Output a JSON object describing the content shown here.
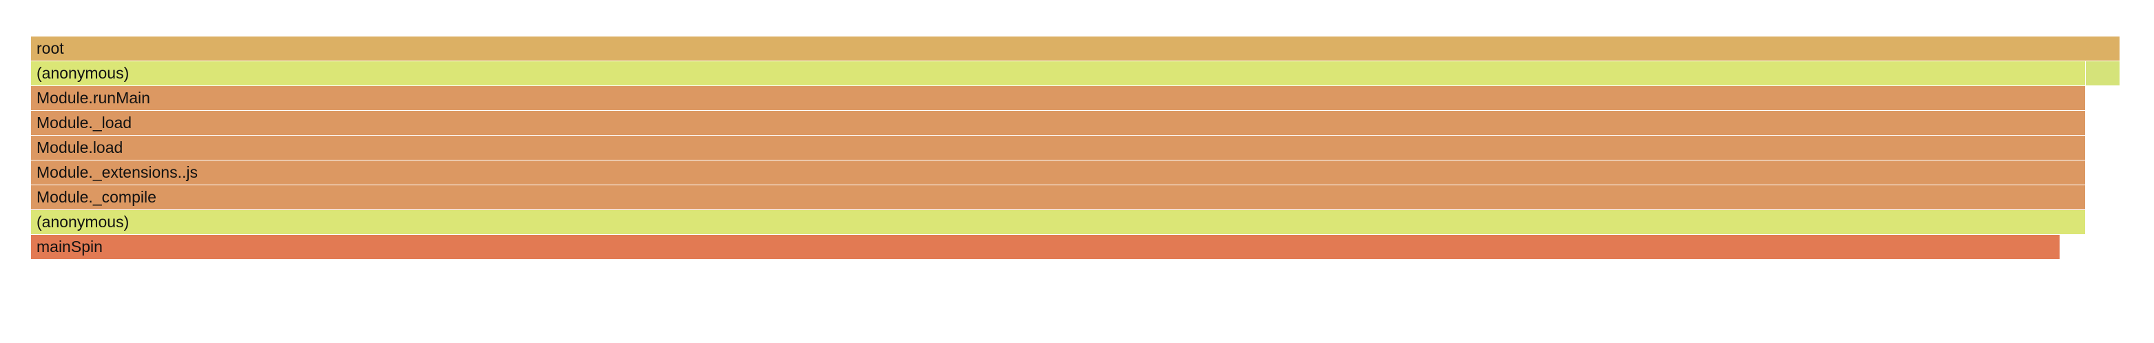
{
  "flamegraph": {
    "frames": [
      {
        "label": "root",
        "depth": 0,
        "start": 0.0,
        "share": 1.0,
        "color": "#dcb064"
      },
      {
        "label": "(anonymous)",
        "depth": 1,
        "start": 0.0,
        "share": 0.9835,
        "color": "#dbe676"
      },
      {
        "label": "",
        "depth": 1,
        "start": 0.9835,
        "share": 0.0165,
        "color": "#d5e37a"
      },
      {
        "label": "Module.runMain",
        "depth": 2,
        "start": 0.0,
        "share": 0.9835,
        "color": "#dc9862"
      },
      {
        "label": "Module._load",
        "depth": 3,
        "start": 0.0,
        "share": 0.9835,
        "color": "#dc9862"
      },
      {
        "label": "Module.load",
        "depth": 4,
        "start": 0.0,
        "share": 0.9835,
        "color": "#dc9862"
      },
      {
        "label": "Module._extensions..js",
        "depth": 5,
        "start": 0.0,
        "share": 0.9835,
        "color": "#dc9862"
      },
      {
        "label": "Module._compile",
        "depth": 6,
        "start": 0.0,
        "share": 0.9835,
        "color": "#dc9862"
      },
      {
        "label": "(anonymous)",
        "depth": 7,
        "start": 0.0,
        "share": 0.9835,
        "color": "#dbe676"
      },
      {
        "label": "mainSpin",
        "depth": 8,
        "start": 0.0,
        "share": 0.9713,
        "color": "#e27a53"
      }
    ]
  }
}
